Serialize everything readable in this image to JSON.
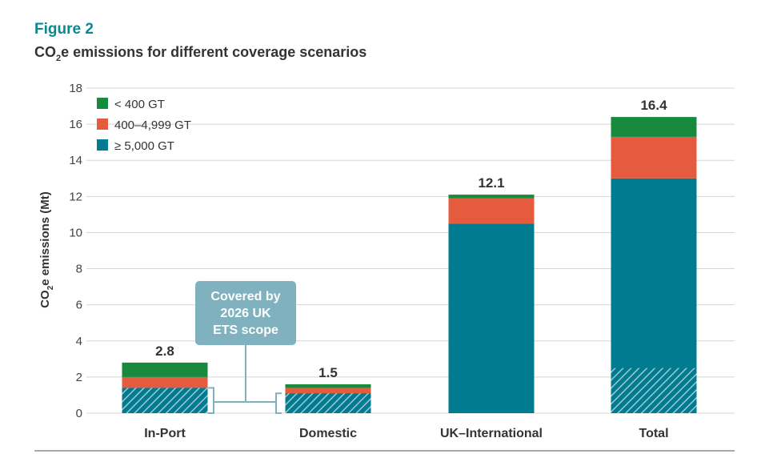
{
  "figure_label": "Figure 2",
  "title_parts": [
    "CO",
    "2",
    "e emissions for different coverage scenarios"
  ],
  "ylabel_parts": [
    "CO",
    "2",
    "e emissions (Mt)"
  ],
  "annotation": {
    "lines": [
      "Covered by",
      "2026 UK",
      "ETS scope"
    ]
  },
  "colors": {
    "lt400": "#178a3e",
    "mid": "#e45b3e",
    "ge5000": "#007b8f",
    "annotation": "#7fb1bf",
    "hatch_line": "#9fc9d3",
    "grid": "#d5d5d5"
  },
  "chart_data": {
    "type": "bar",
    "stacked": true,
    "categories": [
      "In-Port",
      "Domestic",
      "UK–International",
      "Total"
    ],
    "series": [
      {
        "name": "≥ 5,000 GT",
        "color_key": "ge5000",
        "values": [
          1.4,
          1.1,
          10.5,
          13.0
        ]
      },
      {
        "name": "400–4,999 GT",
        "color_key": "mid",
        "values": [
          0.6,
          0.3,
          1.4,
          2.3
        ]
      },
      {
        "name": "< 400 GT",
        "color_key": "lt400",
        "values": [
          0.8,
          0.2,
          0.2,
          1.1
        ]
      }
    ],
    "hatched_portion": [
      1.4,
      1.1,
      0,
      2.5
    ],
    "totals": [
      "2.8",
      "1.5",
      "12.1",
      "16.4"
    ],
    "yticks": [
      0,
      2,
      4,
      6,
      8,
      10,
      12,
      14,
      16,
      18
    ],
    "ylim": [
      0,
      18
    ],
    "grid": true,
    "legend_position": "top-left",
    "legend": [
      "< 400 GT",
      "400–4,999 GT",
      "≥ 5,000 GT"
    ]
  }
}
